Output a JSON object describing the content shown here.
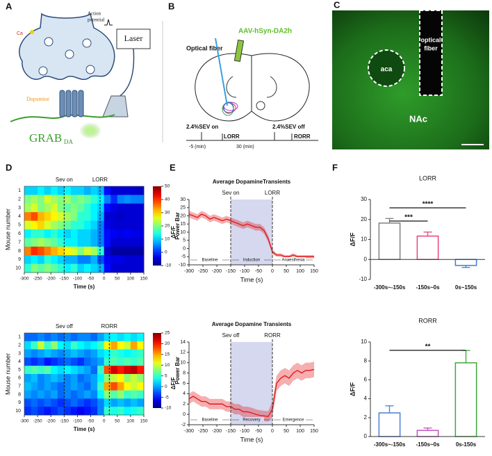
{
  "panel_labels": [
    "A",
    "B",
    "C",
    "D",
    "E",
    "F"
  ],
  "schematic": {
    "action_potential": [
      "Action",
      "potential"
    ],
    "laser": "Laser",
    "calcium": "Ca",
    "dopamine": "Dopamine",
    "sensor": "GRAB",
    "sensor_sub": "DA"
  },
  "surgery": {
    "virus": "AAV-hSyn-DA2h",
    "fiber": "Optical fiber",
    "sev_on": "2.4%SEV on",
    "lorr": "LORR",
    "sev_off": "2.4%SEV off",
    "rorr": "RORR",
    "pre": "-5 (min)",
    "duration": "30 (min)"
  },
  "histology": {
    "aca": "aca",
    "fiber": [
      "optical",
      "fiber"
    ],
    "nac": "NAc"
  },
  "chart_data": [
    {
      "type": "heatmap",
      "categories": [
        "1",
        "2",
        "3",
        "4",
        "5",
        "6",
        "7",
        "8",
        "9",
        "10"
      ],
      "bins": [
        -300,
        -275,
        -250,
        -225,
        -200,
        -175,
        -150,
        -125,
        -100,
        -75,
        -50,
        -25,
        0,
        25,
        50,
        75,
        100,
        125,
        150
      ],
      "values": [
        [
          10,
          10,
          12,
          10,
          12,
          10,
          12,
          10,
          10,
          8,
          10,
          8,
          -2,
          -5,
          -5,
          -5,
          -5,
          -6
        ],
        [
          20,
          22,
          20,
          25,
          22,
          20,
          22,
          18,
          20,
          18,
          15,
          12,
          5,
          0,
          5,
          6,
          5,
          5
        ],
        [
          22,
          25,
          20,
          22,
          25,
          20,
          18,
          20,
          18,
          15,
          12,
          10,
          -2,
          -4,
          -5,
          -5,
          -5,
          -5
        ],
        [
          35,
          38,
          32,
          30,
          28,
          25,
          22,
          20,
          15,
          15,
          12,
          8,
          -5,
          -5,
          -6,
          -5,
          -5,
          -5
        ],
        [
          25,
          28,
          30,
          25,
          22,
          20,
          18,
          15,
          15,
          12,
          10,
          5,
          -4,
          -5,
          -5,
          -5,
          -5,
          -5
        ],
        [
          12,
          15,
          15,
          12,
          15,
          12,
          10,
          12,
          10,
          10,
          8,
          5,
          -2,
          -3,
          -4,
          -3,
          -4,
          -4
        ],
        [
          18,
          20,
          22,
          20,
          18,
          15,
          12,
          12,
          10,
          10,
          8,
          5,
          -2,
          -5,
          -5,
          -5,
          -5,
          -5
        ],
        [
          35,
          40,
          38,
          35,
          32,
          30,
          28,
          25,
          20,
          25,
          22,
          15,
          -5,
          -8,
          -8,
          -8,
          -8,
          -8
        ],
        [
          10,
          12,
          10,
          15,
          12,
          10,
          8,
          8,
          5,
          5,
          8,
          2,
          -3,
          -4,
          -4,
          -5,
          -5,
          -5
        ],
        [
          15,
          20,
          18,
          20,
          18,
          15,
          12,
          15,
          10,
          12,
          10,
          8,
          -2,
          -5,
          -5,
          -5,
          -5,
          -5
        ]
      ],
      "xlim": [
        -300,
        150
      ],
      "xticks": [
        -300,
        -250,
        -200,
        -150,
        -100,
        -50,
        0,
        50,
        100,
        150
      ],
      "clim": [
        -10,
        50
      ],
      "colorbar_ticks": [
        -10,
        0,
        10,
        20,
        30,
        40,
        50
      ],
      "colorbar_label": "Power Bar",
      "colormap": "jet",
      "ylabel": "Mouse number",
      "xlabel": "Time (s)",
      "annotations": [
        {
          "text": "Sev on",
          "x": -150
        },
        {
          "text": "LORR",
          "x": -15
        }
      ]
    },
    {
      "type": "heatmap",
      "categories": [
        "1",
        "2",
        "3",
        "4",
        "5",
        "6",
        "7",
        "8",
        "9",
        "10"
      ],
      "bins": [
        -300,
        -275,
        -250,
        -225,
        -200,
        -175,
        -150,
        -125,
        -100,
        -75,
        -50,
        -25,
        0,
        25,
        50,
        75,
        100,
        125,
        150
      ],
      "values": [
        [
          -2,
          -2,
          -1,
          -2,
          -1,
          -2,
          -1,
          -2,
          -1,
          -1,
          -2,
          0,
          2,
          3,
          2,
          3,
          2,
          3
        ],
        [
          2,
          5,
          10,
          5,
          8,
          3,
          2,
          5,
          3,
          2,
          3,
          5,
          12,
          15,
          12,
          10,
          15,
          12
        ],
        [
          0,
          -1,
          0,
          1,
          0,
          -1,
          0,
          1,
          0,
          -1,
          0,
          2,
          3,
          5,
          4,
          3,
          4,
          5
        ],
        [
          -3,
          -4,
          -3,
          -5,
          -4,
          -3,
          -2,
          -3,
          -4,
          -2,
          -1,
          0,
          5,
          6,
          5,
          6,
          5,
          6
        ],
        [
          5,
          6,
          5,
          6,
          3,
          2,
          3,
          2,
          1,
          0,
          -2,
          5,
          18,
          22,
          20,
          22,
          23,
          20
        ],
        [
          0,
          1,
          -1,
          0,
          1,
          0,
          -1,
          0,
          -2,
          -1,
          0,
          3,
          8,
          10,
          12,
          8,
          10,
          8
        ],
        [
          1,
          0,
          -1,
          0,
          -1,
          -2,
          -1,
          0,
          -1,
          -2,
          0,
          5,
          15,
          18,
          15,
          12,
          10,
          12
        ],
        [
          0,
          -1,
          0,
          -1,
          0,
          -2,
          -1,
          -2,
          -1,
          0,
          -1,
          3,
          8,
          6,
          8,
          5,
          6,
          5
        ],
        [
          -3,
          -2,
          -3,
          -2,
          -3,
          -4,
          -3,
          -2,
          -3,
          -4,
          -3,
          -1,
          2,
          0,
          1,
          0,
          1,
          0
        ],
        [
          -4,
          -3,
          -4,
          -5,
          -4,
          -3,
          -4,
          -5,
          -6,
          -5,
          -4,
          -1,
          5,
          4,
          5,
          3,
          4,
          5
        ]
      ],
      "xlim": [
        -300,
        150
      ],
      "xticks": [
        -300,
        -250,
        -200,
        -150,
        -100,
        -50,
        0,
        50,
        100,
        150
      ],
      "clim": [
        -10,
        25
      ],
      "colorbar_ticks": [
        -10,
        -5,
        0,
        5,
        10,
        15,
        20,
        25
      ],
      "colorbar_label": "Power Bar",
      "colormap": "jet",
      "ylabel": "Mouse number",
      "xlabel": "Time (s)",
      "annotations": [
        {
          "text": "Sev off",
          "x": -150
        },
        {
          "text": "RORR",
          "x": 20
        }
      ]
    },
    {
      "type": "line",
      "title": "Average DopamineTransients",
      "x": [
        -300,
        -285,
        -270,
        -255,
        -240,
        -225,
        -210,
        -195,
        -180,
        -165,
        -150,
        -135,
        -120,
        -105,
        -90,
        -75,
        -60,
        -45,
        -30,
        -15,
        0,
        15,
        30,
        45,
        60,
        75,
        90,
        105,
        120,
        135,
        150
      ],
      "values": [
        21,
        20,
        19,
        21,
        20,
        18,
        19,
        18,
        17,
        18,
        17,
        16,
        15,
        14,
        15,
        14,
        13,
        13,
        11,
        6,
        -2,
        -4,
        -4,
        -5,
        -5,
        -4,
        -5,
        -5,
        -5,
        -5,
        -5
      ],
      "error": [
        2,
        2,
        2,
        2,
        2,
        2,
        2,
        2,
        2,
        2,
        2,
        2,
        2,
        2,
        2,
        2,
        2,
        2,
        2,
        2,
        1.5,
        1,
        1,
        1,
        1,
        1,
        1,
        1,
        1,
        1,
        1
      ],
      "color": "#e31a1c",
      "xlim": [
        -300,
        150
      ],
      "xticks": [
        -300,
        -250,
        -200,
        -150,
        -100,
        -50,
        0,
        50,
        100,
        150
      ],
      "ylim": [
        -10,
        30
      ],
      "yticks": [
        -10,
        -5,
        0,
        5,
        10,
        15,
        20,
        25,
        30
      ],
      "xlabel": "Time (s)",
      "ylabel": "ΔF/F",
      "shaded_region": [
        -150,
        0
      ],
      "annotations": [
        {
          "text": "Sev on",
          "x": -150
        },
        {
          "text": "LORR",
          "x": 0
        }
      ],
      "phases": [
        {
          "label": "Baseline",
          "from": -300,
          "to": -150
        },
        {
          "label": "Induction",
          "from": -150,
          "to": 0
        },
        {
          "label": "Anaesthesia",
          "from": 0,
          "to": 150
        }
      ]
    },
    {
      "type": "line",
      "title": "Average Dopamine Transients",
      "x": [
        -300,
        -285,
        -270,
        -255,
        -240,
        -225,
        -210,
        -195,
        -180,
        -165,
        -150,
        -135,
        -120,
        -105,
        -90,
        -75,
        -60,
        -45,
        -30,
        -15,
        0,
        15,
        30,
        45,
        60,
        75,
        90,
        105,
        120,
        135,
        150
      ],
      "values": [
        3,
        3.5,
        3,
        2.5,
        2.5,
        2,
        2,
        2,
        2,
        1.5,
        1.5,
        1,
        1,
        0.5,
        0.5,
        0.3,
        0,
        -0.2,
        -0.3,
        -0.4,
        1,
        6,
        7,
        7.5,
        7,
        8,
        8.5,
        8,
        8.5,
        8.5,
        8.7
      ],
      "error": [
        1,
        1,
        1,
        1,
        1,
        1,
        1,
        1,
        1,
        1,
        1,
        1,
        1,
        1,
        1,
        1,
        1,
        1,
        1,
        1,
        1.5,
        1.5,
        1.5,
        1.5,
        1.5,
        1.5,
        1.5,
        1.5,
        1.5,
        1.5,
        1.5
      ],
      "color": "#e31a1c",
      "xlim": [
        -300,
        150
      ],
      "xticks": [
        -300,
        -250,
        -200,
        -150,
        -100,
        -50,
        0,
        50,
        100,
        150
      ],
      "ylim": [
        -2,
        14
      ],
      "yticks": [
        -2,
        0,
        2,
        4,
        6,
        8,
        10,
        12,
        14
      ],
      "xlabel": "Time (s)",
      "ylabel": "ΔF/F",
      "shaded_region": [
        -150,
        0
      ],
      "annotations": [
        {
          "text": "Sev off",
          "x": -150
        },
        {
          "text": "RORR",
          "x": 0
        }
      ],
      "phases": [
        {
          "label": "Baseline",
          "from": -300,
          "to": -150
        },
        {
          "label": "Recovery",
          "from": -150,
          "to": 0
        },
        {
          "label": "Emergence",
          "from": 0,
          "to": 150
        }
      ]
    },
    {
      "type": "bar",
      "title": "LORR",
      "categories": [
        "-300s~-150s",
        "-150s~0s",
        "0s~150s"
      ],
      "values": [
        18.2,
        11.7,
        -3
      ],
      "error": [
        2.3,
        2,
        1
      ],
      "colors": [
        "#808080",
        "#e8417f",
        "#3a7fd5"
      ],
      "ylim": [
        -10,
        30
      ],
      "yticks": [
        -10,
        0,
        10,
        20,
        30
      ],
      "ylabel": "ΔF/F",
      "significance": [
        {
          "label": "***",
          "from": 0,
          "to": 1
        },
        {
          "label": "****",
          "from": 0,
          "to": 2
        }
      ]
    },
    {
      "type": "bar",
      "title": "RORR",
      "categories": [
        "-300s~-150s",
        "-150s~0s",
        "0s-150s"
      ],
      "values": [
        2.5,
        0.65,
        7.8
      ],
      "error": [
        0.75,
        0.25,
        1.3
      ],
      "colors": [
        "#4a7fd4",
        "#c050c0",
        "#3aa93a"
      ],
      "ylim": [
        0,
        10
      ],
      "yticks": [
        0,
        2,
        4,
        6,
        8,
        10
      ],
      "ylabel": "ΔF/F",
      "significance": [
        {
          "label": "**",
          "from": 0,
          "to": 2
        }
      ]
    }
  ]
}
